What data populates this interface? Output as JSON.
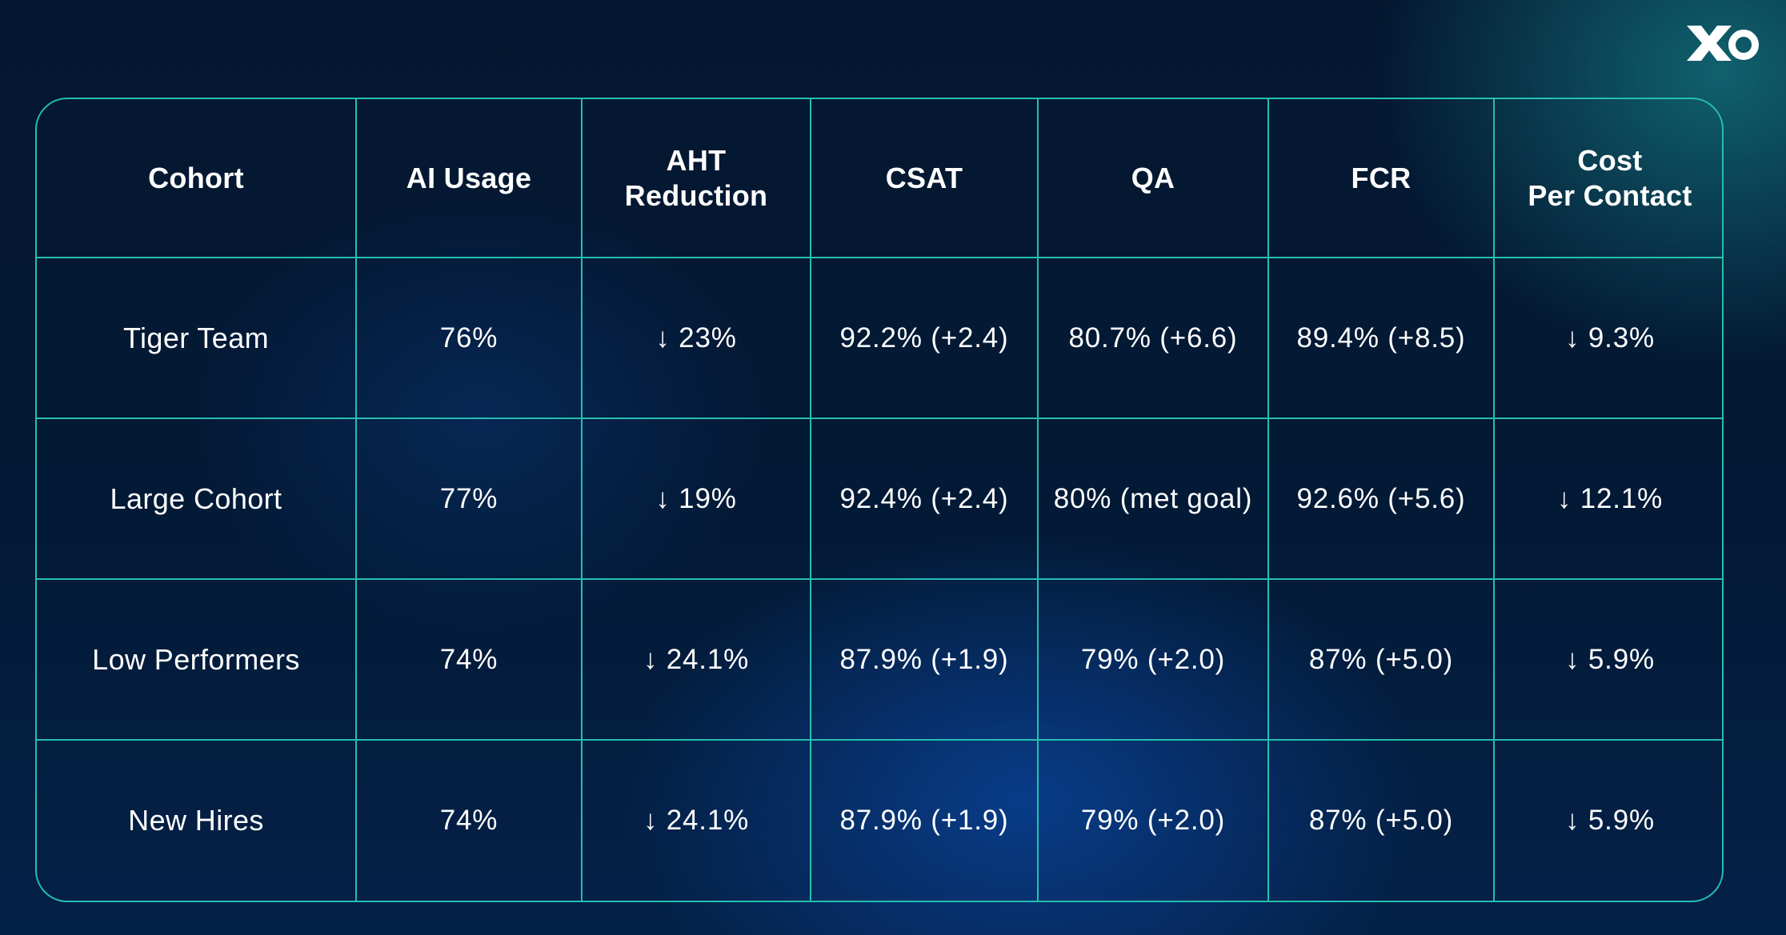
{
  "brand": {
    "logo_text": "XO",
    "colors": {
      "grid": "#25bfae",
      "text": "#ffffff",
      "background": "#031a36"
    }
  },
  "chart_data": {
    "type": "table",
    "columns": [
      {
        "label_lines": [
          "Cohort"
        ]
      },
      {
        "label_lines": [
          "AI Usage"
        ]
      },
      {
        "label_lines": [
          "AHT",
          "Reduction"
        ]
      },
      {
        "label_lines": [
          "CSAT"
        ]
      },
      {
        "label_lines": [
          "QA"
        ]
      },
      {
        "label_lines": [
          "FCR"
        ]
      },
      {
        "label_lines": [
          "Cost",
          "Per Contact"
        ]
      }
    ],
    "rows": [
      [
        "Tiger Team",
        "76%",
        "↓ 23%",
        "92.2% (+2.4)",
        "80.7% (+6.6)",
        "89.4% (+8.5)",
        "↓ 9.3%"
      ],
      [
        "Large Cohort",
        "77%",
        "↓ 19%",
        "92.4% (+2.4)",
        "80% (met goal)",
        "92.6% (+5.6)",
        "↓ 12.1%"
      ],
      [
        "Low Performers",
        "74%",
        "↓ 24.1%",
        "87.9% (+1.9)",
        "79% (+2.0)",
        "87% (+5.0)",
        "↓ 5.9%"
      ],
      [
        "New Hires",
        "74%",
        "↓ 24.1%",
        "87.9% (+1.9)",
        "79% (+2.0)",
        "87% (+5.0)",
        "↓ 5.9%"
      ]
    ]
  }
}
